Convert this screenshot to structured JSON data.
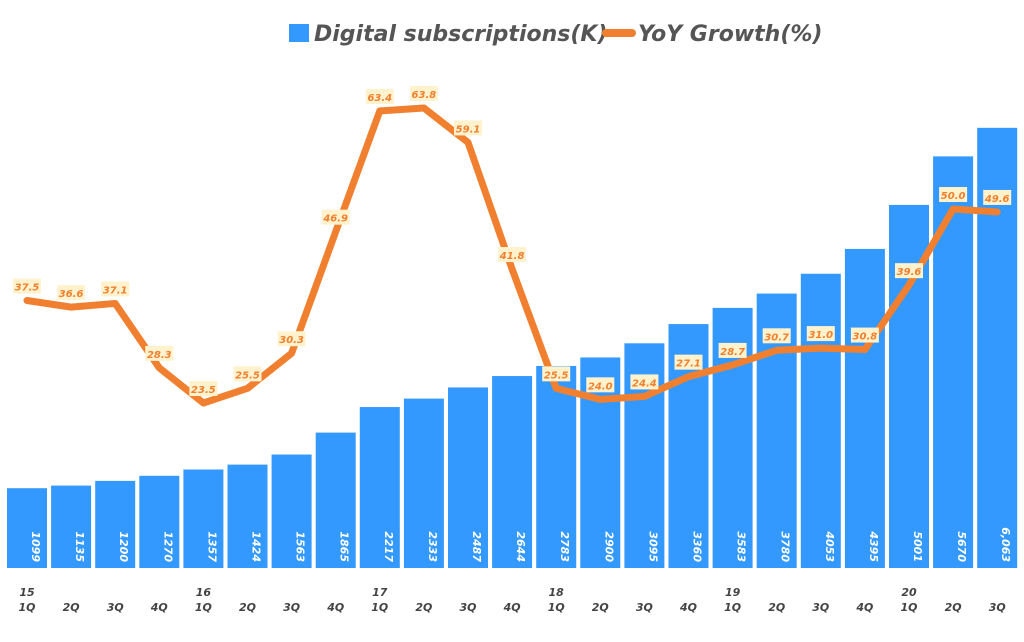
{
  "chart_data": {
    "type": "bar+line",
    "title": "",
    "categories": [
      "1Q",
      "2Q",
      "3Q",
      "4Q",
      "1Q",
      "2Q",
      "3Q",
      "4Q",
      "1Q",
      "2Q",
      "3Q",
      "4Q",
      "1Q",
      "2Q",
      "3Q",
      "4Q",
      "1Q",
      "2Q",
      "3Q",
      "4Q",
      "1Q",
      "2Q",
      "3Q"
    ],
    "years": [
      "15",
      "",
      "",
      "",
      "16",
      "",
      "",
      "",
      "17",
      "",
      "",
      "",
      "18",
      "",
      "",
      "",
      "19",
      "",
      "",
      "",
      "20",
      "",
      ""
    ],
    "series": [
      {
        "name": "Digital subscriptions(K)",
        "type": "bar",
        "color": "#3399FF",
        "values": [
          1099,
          1135,
          1200,
          1270,
          1357,
          1424,
          1563,
          1865,
          2217,
          2333,
          2487,
          2644,
          2783,
          2900,
          3095,
          3360,
          3583,
          3780,
          4053,
          4395,
          5001,
          5670,
          6063
        ],
        "labels": [
          "1099",
          "1135",
          "1200",
          "1270",
          "1357",
          "1424",
          "1563",
          "1865",
          "2217",
          "2333",
          "2487",
          "2644",
          "2783",
          "2900",
          "3095",
          "3360",
          "3583",
          "3780",
          "4053",
          "4395",
          "5001",
          "5670",
          "6,063"
        ]
      },
      {
        "name": "YoY Growth(%)",
        "type": "line",
        "color": "#F08030",
        "values": [
          37.5,
          36.6,
          37.1,
          28.3,
          23.5,
          25.5,
          30.3,
          46.9,
          63.4,
          63.8,
          59.1,
          41.8,
          25.5,
          24.0,
          24.4,
          27.1,
          28.7,
          30.7,
          31.0,
          30.8,
          39.6,
          50.0,
          49.6
        ]
      }
    ],
    "legend": "top-center",
    "grid": false
  }
}
